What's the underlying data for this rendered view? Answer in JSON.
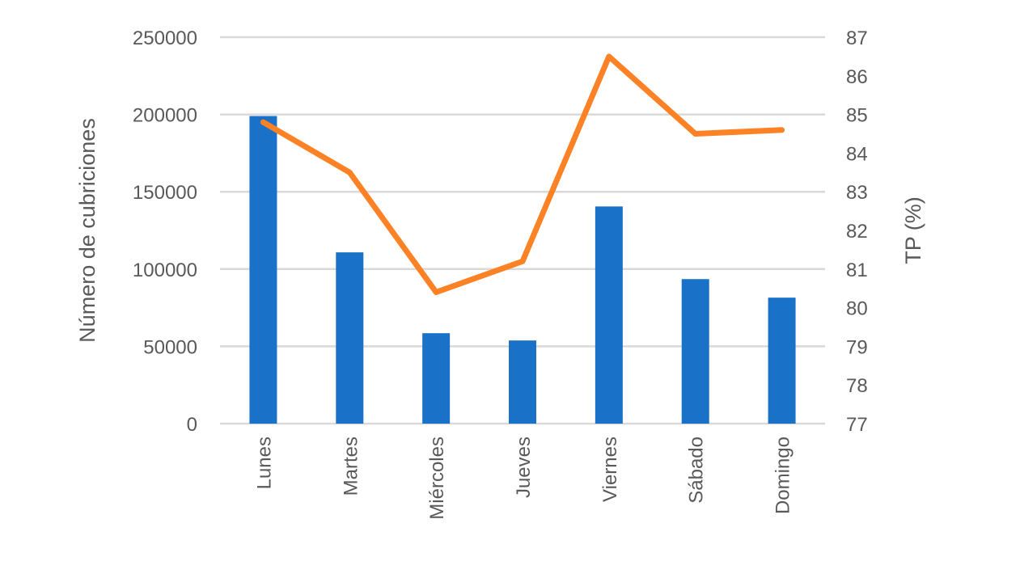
{
  "chart_data": {
    "type": "bar+line",
    "categories": [
      "Lunes",
      "Martes",
      "Miércoles",
      "Jueves",
      "Viernes",
      "Sábado",
      "Domingo"
    ],
    "series": [
      {
        "type": "bar",
        "axis": "left",
        "color": "#1a71c8",
        "values": [
          199000,
          110800,
          58500,
          53800,
          140500,
          93500,
          81500
        ]
      },
      {
        "type": "line",
        "axis": "right",
        "color": "#fd8226",
        "values": [
          84.8,
          83.5,
          80.4,
          81.2,
          86.5,
          84.5,
          84.6
        ]
      }
    ],
    "ylabel": "Número de cubriciones",
    "y2label": "TP (%)",
    "ylim": [
      0,
      250000
    ],
    "yticks": [
      "0",
      "50000",
      "100000",
      "150000",
      "200000",
      "250000"
    ],
    "y2lim": [
      77,
      87
    ],
    "y2ticks": [
      "77",
      "78",
      "79",
      "80",
      "81",
      "82",
      "83",
      "84",
      "85",
      "86",
      "87"
    ],
    "grid": true,
    "legend": "none"
  }
}
